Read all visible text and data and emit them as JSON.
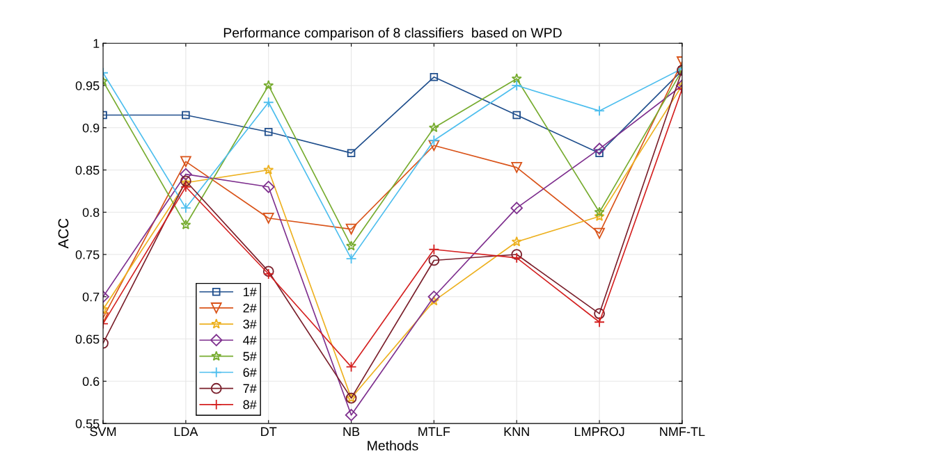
{
  "chart_data": {
    "type": "line",
    "title": "Performance comparison of 8 classifiers  based on WPD",
    "xlabel": "Methods",
    "ylabel": "ACC",
    "categories": [
      "SVM",
      "LDA",
      "DT",
      "NB",
      "MTLF",
      "KNN",
      "LMPROJ",
      "NMF-TL"
    ],
    "ylim": [
      0.55,
      1
    ],
    "yticks": [
      {
        "value": 0.55,
        "label": "0.55"
      },
      {
        "value": 0.6,
        "label": "0.6"
      },
      {
        "value": 0.65,
        "label": "0.65"
      },
      {
        "value": 0.7,
        "label": "0.7"
      },
      {
        "value": 0.75,
        "label": "0.75"
      },
      {
        "value": 0.8,
        "label": "0.8"
      },
      {
        "value": 0.85,
        "label": "0.85"
      },
      {
        "value": 0.9,
        "label": "0.9"
      },
      {
        "value": 0.95,
        "label": "0.95"
      },
      {
        "value": 1,
        "label": "1"
      }
    ],
    "grid": true,
    "legend": "bottom left",
    "series": [
      {
        "name": "1#",
        "color": "#1f4e8c",
        "marker": "square",
        "values": [
          0.915,
          0.915,
          0.895,
          0.87,
          0.96,
          0.915,
          0.87,
          0.968
        ]
      },
      {
        "name": "2#",
        "color": "#d95319",
        "marker": "triangle",
        "values": [
          0.675,
          0.86,
          0.793,
          0.78,
          0.879,
          0.853,
          0.775,
          0.978
        ]
      },
      {
        "name": "3#",
        "color": "#edb120",
        "marker": "star",
        "values": [
          0.685,
          0.835,
          0.85,
          0.58,
          0.695,
          0.765,
          0.795,
          0.95
        ]
      },
      {
        "name": "4#",
        "color": "#7e2f8e",
        "marker": "diamond",
        "values": [
          0.7,
          0.845,
          0.83,
          0.56,
          0.7,
          0.805,
          0.875,
          0.95
        ]
      },
      {
        "name": "5#",
        "color": "#77ac30",
        "marker": "star",
        "values": [
          0.955,
          0.785,
          0.95,
          0.76,
          0.9,
          0.958,
          0.8,
          0.968
        ]
      },
      {
        "name": "6#",
        "color": "#4dbeee",
        "marker": "cross",
        "values": [
          0.965,
          0.805,
          0.93,
          0.745,
          0.885,
          0.95,
          0.92,
          0.97
        ]
      },
      {
        "name": "7#",
        "color": "#7a1f2b",
        "marker": "circle",
        "values": [
          0.645,
          0.837,
          0.73,
          0.58,
          0.743,
          0.75,
          0.68,
          0.968
        ]
      },
      {
        "name": "8#",
        "color": "#d42020",
        "marker": "cross",
        "values": [
          0.668,
          0.83,
          0.727,
          0.617,
          0.756,
          0.746,
          0.67,
          0.946
        ]
      }
    ]
  }
}
